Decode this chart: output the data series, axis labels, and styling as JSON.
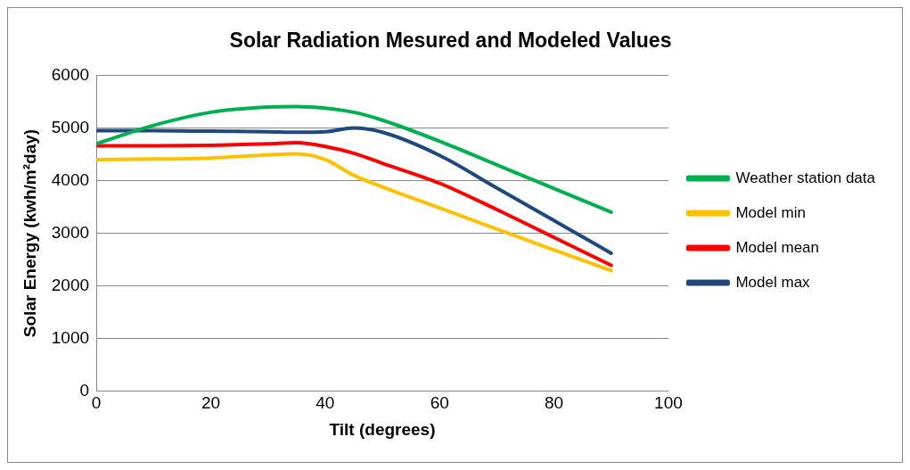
{
  "chart_data": {
    "type": "line",
    "title": "Solar Radiation Mesured and Modeled Values",
    "xlabel": "Tilt (degrees)",
    "ylabel": "Solar Energy (kwh/m²day)",
    "x": [
      0,
      10,
      20,
      30,
      35,
      40,
      45,
      50,
      60,
      70,
      80,
      90
    ],
    "series": [
      {
        "name": "Weather station data",
        "color": "#00b050",
        "values": [
          4700,
          5050,
          5300,
          5400,
          5410,
          5380,
          5300,
          5150,
          4750,
          4300,
          3850,
          3400
        ]
      },
      {
        "name": "Model min",
        "color": "#ffc000",
        "values": [
          4400,
          4410,
          4430,
          4490,
          4510,
          4400,
          4100,
          3880,
          3480,
          3080,
          2680,
          2290
        ]
      },
      {
        "name": "Model mean",
        "color": "#ff0000",
        "values": [
          4660,
          4660,
          4670,
          4700,
          4720,
          4650,
          4520,
          4330,
          3950,
          3450,
          2920,
          2390
        ]
      },
      {
        "name": "Model max",
        "color": "#1f497d",
        "values": [
          4950,
          4950,
          4940,
          4930,
          4920,
          4930,
          5000,
          4920,
          4480,
          3860,
          3240,
          2620
        ]
      }
    ],
    "xlim": [
      0,
      100
    ],
    "xticks": [
      0,
      20,
      40,
      60,
      80,
      100
    ],
    "ylim": [
      0,
      6000
    ],
    "yticks": [
      0,
      1000,
      2000,
      3000,
      4000,
      5000,
      6000
    ],
    "grid": "y",
    "legend": "right",
    "marker": "none",
    "line_style": "solid"
  }
}
